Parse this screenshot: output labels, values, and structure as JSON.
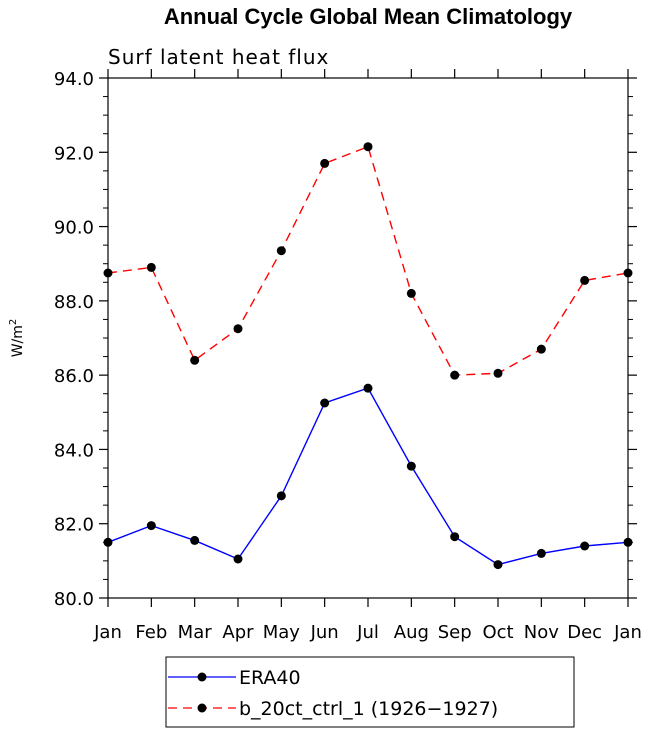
{
  "chart_data": {
    "type": "line",
    "title": "Annual Cycle Global Mean Climatology",
    "subtitle": "Surf latent heat flux",
    "xlabel": "",
    "ylabel": "W/m",
    "ylabel_superscript": "2",
    "categories": [
      "Jan",
      "Feb",
      "Mar",
      "Apr",
      "May",
      "Jun",
      "Jul",
      "Aug",
      "Sep",
      "Oct",
      "Nov",
      "Dec",
      "Jan"
    ],
    "ylim": [
      80.0,
      94.0
    ],
    "y_ticks": [
      "80.0",
      "82.0",
      "84.0",
      "86.0",
      "88.0",
      "90.0",
      "92.0",
      "94.0"
    ],
    "y_tick_values": [
      80,
      82,
      84,
      86,
      88,
      90,
      92,
      94
    ],
    "grid": false,
    "legend_position": "bottom",
    "series": [
      {
        "name": "ERA40",
        "color": "#0000ff",
        "dash": "solid",
        "values": [
          81.5,
          81.95,
          81.55,
          81.05,
          82.75,
          85.25,
          85.65,
          83.55,
          81.65,
          80.9,
          81.2,
          81.4,
          81.5
        ]
      },
      {
        "name": "b_20ct_ctrl_1 (1926−1927)",
        "color": "#ff0000",
        "dash": "dashed",
        "values": [
          88.75,
          88.9,
          86.4,
          87.25,
          89.35,
          91.7,
          92.15,
          88.2,
          86.0,
          86.05,
          86.7,
          88.55,
          88.75
        ]
      }
    ]
  }
}
